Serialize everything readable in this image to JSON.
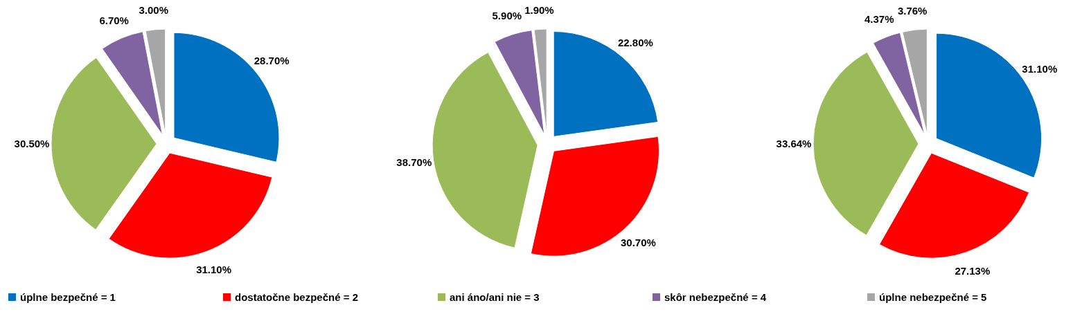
{
  "chart_data": [
    {
      "type": "pie",
      "categories": [
        "úplne bezpečné = 1",
        "dostatočne bezpečné = 2",
        "ani áno/ani nie = 3",
        "skôr nebezpečné = 4",
        "úplne nebezpečné = 5"
      ],
      "values": [
        28.7,
        31.1,
        30.5,
        6.7,
        3.0
      ],
      "value_labels": [
        "28.70%",
        "31.10%",
        "30.50%",
        "6.70%",
        "3.00%"
      ],
      "colors": [
        "#0070c0",
        "#ff0000",
        "#9bbb59",
        "#8064a2",
        "#a6a6a6"
      ],
      "legend": "bottom"
    },
    {
      "type": "pie",
      "categories": [
        null,
        null,
        null,
        null,
        null
      ],
      "values": [
        22.8,
        30.7,
        38.7,
        5.9,
        1.9
      ],
      "value_labels": [
        "22.80%",
        "30.70%",
        "38.70%",
        "5.90%",
        "1.90%"
      ],
      "colors": [
        "#0070c0",
        "#ff0000",
        "#9bbb59",
        "#8064a2",
        "#a6a6a6"
      ]
    },
    {
      "type": "pie",
      "categories": [
        null,
        null,
        null,
        null,
        null
      ],
      "values": [
        31.1,
        27.13,
        33.64,
        4.37,
        3.76
      ],
      "value_labels": [
        "31.10%",
        "27.13%",
        "33.64%",
        "4.37%",
        "3.76%"
      ],
      "colors": [
        "#0070c0",
        "#ff0000",
        "#9bbb59",
        "#8064a2",
        "#a6a6a6"
      ]
    }
  ]
}
